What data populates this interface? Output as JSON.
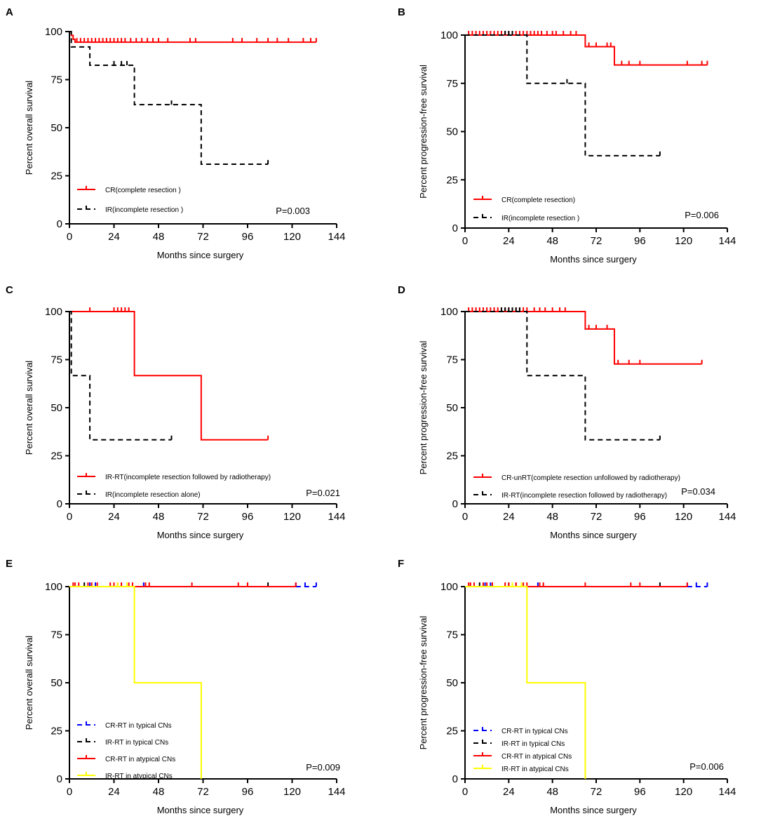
{
  "figure": {
    "x_axis_label": "Months since surgery",
    "x_ticks": [
      "0",
      "24",
      "48",
      "72",
      "96",
      "120",
      "144"
    ],
    "y_ticks": [
      "0",
      "25",
      "50",
      "75",
      "100"
    ]
  },
  "colors": {
    "red": "#ff0000",
    "black": "#000000",
    "blue": "#0000ff",
    "yellow": "#ffff00"
  },
  "chart_data": [
    {
      "panel": "A",
      "type": "line",
      "title": "",
      "xlabel": "Months since surgery",
      "ylabel": "Percent overall survival",
      "xlim": [
        0,
        144
      ],
      "ylim": [
        0,
        100
      ],
      "p_value": "P=0.003",
      "series": [
        {
          "name": "CR(complete resection )",
          "color": "#ff0000",
          "style": "solid",
          "end": 133,
          "steps": [
            [
              0,
              100
            ],
            [
              1,
              98
            ],
            [
              2,
              96
            ],
            [
              3,
              94.5
            ]
          ],
          "censors": [
            4,
            6,
            8,
            10,
            12,
            14,
            16,
            18,
            20,
            22,
            24,
            26,
            28,
            30,
            33,
            36,
            39,
            42,
            45,
            48,
            53,
            65,
            68,
            88,
            93,
            101,
            107,
            112,
            118,
            126,
            130,
            133
          ]
        },
        {
          "name": "IR(incomplete resection )",
          "color": "#000000",
          "style": "dashed",
          "end": 107,
          "steps": [
            [
              0,
              100
            ],
            [
              1,
              92
            ],
            [
              11,
              82.5
            ],
            [
              35,
              62
            ],
            [
              71,
              31
            ]
          ],
          "censors": [
            24,
            28,
            31,
            55,
            107
          ]
        }
      ]
    },
    {
      "panel": "B",
      "type": "line",
      "title": "",
      "xlabel": "Months since surgery",
      "ylabel": "Percent progression-free survival",
      "xlim": [
        0,
        144
      ],
      "ylim": [
        0,
        100
      ],
      "p_value": "P=0.006",
      "series": [
        {
          "name": "CR(complete resection)",
          "color": "#ff0000",
          "style": "solid",
          "end": 133,
          "steps": [
            [
              0,
              100
            ],
            [
              66,
              94
            ],
            [
              82,
              84.5
            ]
          ],
          "censors": [
            2,
            4,
            6,
            8,
            10,
            12,
            14,
            16,
            18,
            20,
            22,
            24,
            26,
            28,
            30,
            32,
            34,
            36,
            38,
            40,
            42,
            45,
            48,
            50,
            54,
            58,
            61,
            68,
            72,
            78,
            80,
            86,
            90,
            96,
            122,
            130,
            133
          ]
        },
        {
          "name": "IR(incomplete resection )",
          "color": "#000000",
          "style": "dashed",
          "end": 107,
          "steps": [
            [
              0,
              100
            ],
            [
              34,
              75
            ],
            [
              66,
              37.5
            ]
          ],
          "censors": [
            22,
            24,
            26,
            56,
            107
          ]
        }
      ]
    },
    {
      "panel": "C",
      "type": "line",
      "title": "",
      "xlabel": "Months since surgery",
      "ylabel": "Percent overall survival",
      "xlim": [
        0,
        144
      ],
      "ylim": [
        0,
        100
      ],
      "p_value": "P=0.021",
      "series": [
        {
          "name": "IR-RT(incomplete resection followed by radiotherapy)",
          "color": "#ff0000",
          "style": "solid",
          "end": 107,
          "steps": [
            [
              0,
              100
            ],
            [
              35,
              66.7
            ],
            [
              71,
              33.3
            ]
          ],
          "censors": [
            11,
            24,
            26,
            28,
            30,
            32,
            107
          ]
        },
        {
          "name": "IR(incomplete resection alone)",
          "color": "#000000",
          "style": "dashed",
          "end": 55,
          "steps": [
            [
              0,
              100
            ],
            [
              1,
              66.7
            ],
            [
              11,
              33.3
            ]
          ],
          "censors": [
            55
          ]
        }
      ]
    },
    {
      "panel": "D",
      "type": "line",
      "title": "",
      "xlabel": "Months since surgery",
      "ylabel": "Percent progression-free survival",
      "xlim": [
        0,
        144
      ],
      "ylim": [
        0,
        100
      ],
      "p_value": "P=0.034",
      "series": [
        {
          "name": "CR-unRT(complete resection unfollowed by radiotherapy)",
          "color": "#ff0000",
          "style": "solid",
          "end": 130,
          "steps": [
            [
              0,
              100
            ],
            [
              66,
              90.9
            ],
            [
              82,
              72.7
            ]
          ],
          "censors": [
            2,
            4,
            6,
            8,
            10,
            12,
            14,
            16,
            18,
            20,
            22,
            24,
            26,
            28,
            30,
            32,
            34,
            38,
            41,
            44,
            48,
            52,
            55,
            68,
            72,
            78,
            84,
            90,
            96,
            130
          ]
        },
        {
          "name": "IR-RT(incomplete resection  followed by radiotherapy)",
          "color": "#000000",
          "style": "dashed",
          "end": 107,
          "steps": [
            [
              0,
              100
            ],
            [
              34,
              66.7
            ],
            [
              66,
              33.3
            ]
          ],
          "censors": [
            20,
            22,
            24,
            26,
            28,
            30,
            107
          ]
        }
      ]
    },
    {
      "panel": "E",
      "type": "line",
      "title": "",
      "xlabel": "Months since surgery",
      "ylabel": "Percent overall survival",
      "xlim": [
        0,
        144
      ],
      "ylim": [
        0,
        100
      ],
      "p_value": "P=0.009",
      "series": [
        {
          "name": "CR-RT in typical CNs",
          "color": "#0000ff",
          "style": "dashed",
          "end": 133,
          "steps": [
            [
              0,
              100
            ]
          ],
          "start": 122,
          "censors": [
            11,
            14,
            28,
            40,
            122,
            127,
            133
          ]
        },
        {
          "name": "IR-RT in typical CNs",
          "color": "#000000",
          "style": "dashed",
          "end": 107,
          "steps": [
            [
              0,
              100
            ]
          ],
          "start": 107,
          "censors": [
            8,
            24,
            107
          ]
        },
        {
          "name": "CR-RT in atypical CNs",
          "color": "#ff0000",
          "style": "solid",
          "end": 122,
          "steps": [
            [
              0,
              100
            ]
          ],
          "censors": [
            2,
            3,
            5,
            10,
            12,
            15,
            22,
            24,
            26,
            28,
            32,
            34,
            41,
            43,
            66,
            91,
            96,
            122
          ]
        },
        {
          "name": "IR-RT in atypical CNs",
          "color": "#ffff00",
          "style": "solid",
          "end": 71,
          "steps": [
            [
              0,
              100
            ],
            [
              35,
              50
            ],
            [
              71,
              0
            ]
          ],
          "censors": [
            26,
            31
          ]
        }
      ]
    },
    {
      "panel": "F",
      "type": "line",
      "title": "",
      "xlabel": "Months since surgery",
      "ylabel": "Percent progression-free survival",
      "xlim": [
        0,
        144
      ],
      "ylim": [
        0,
        100
      ],
      "p_value": "P=0.006",
      "series": [
        {
          "name": "CR-RT in typical CNs",
          "color": "#0000ff",
          "style": "dashed",
          "end": 133,
          "steps": [
            [
              0,
              100
            ]
          ],
          "start": 122,
          "censors": [
            11,
            14,
            28,
            40,
            122,
            127,
            133
          ]
        },
        {
          "name": "IR-RT in typical CNs",
          "color": "#000000",
          "style": "dashed",
          "end": 107,
          "steps": [
            [
              0,
              100
            ]
          ],
          "start": 107,
          "censors": [
            8,
            24,
            107
          ]
        },
        {
          "name": "CR-RT in atypical CNs",
          "color": "#ff0000",
          "style": "solid",
          "end": 122,
          "steps": [
            [
              0,
              100
            ]
          ],
          "censors": [
            2,
            3,
            5,
            10,
            12,
            15,
            22,
            24,
            26,
            28,
            32,
            34,
            41,
            43,
            66,
            91,
            96,
            122
          ]
        },
        {
          "name": "IR-RT in atypical CNs",
          "color": "#ffff00",
          "style": "solid",
          "end": 66,
          "steps": [
            [
              0,
              100
            ],
            [
              34,
              50
            ],
            [
              66,
              0
            ]
          ],
          "censors": [
            26,
            31
          ]
        }
      ]
    }
  ]
}
